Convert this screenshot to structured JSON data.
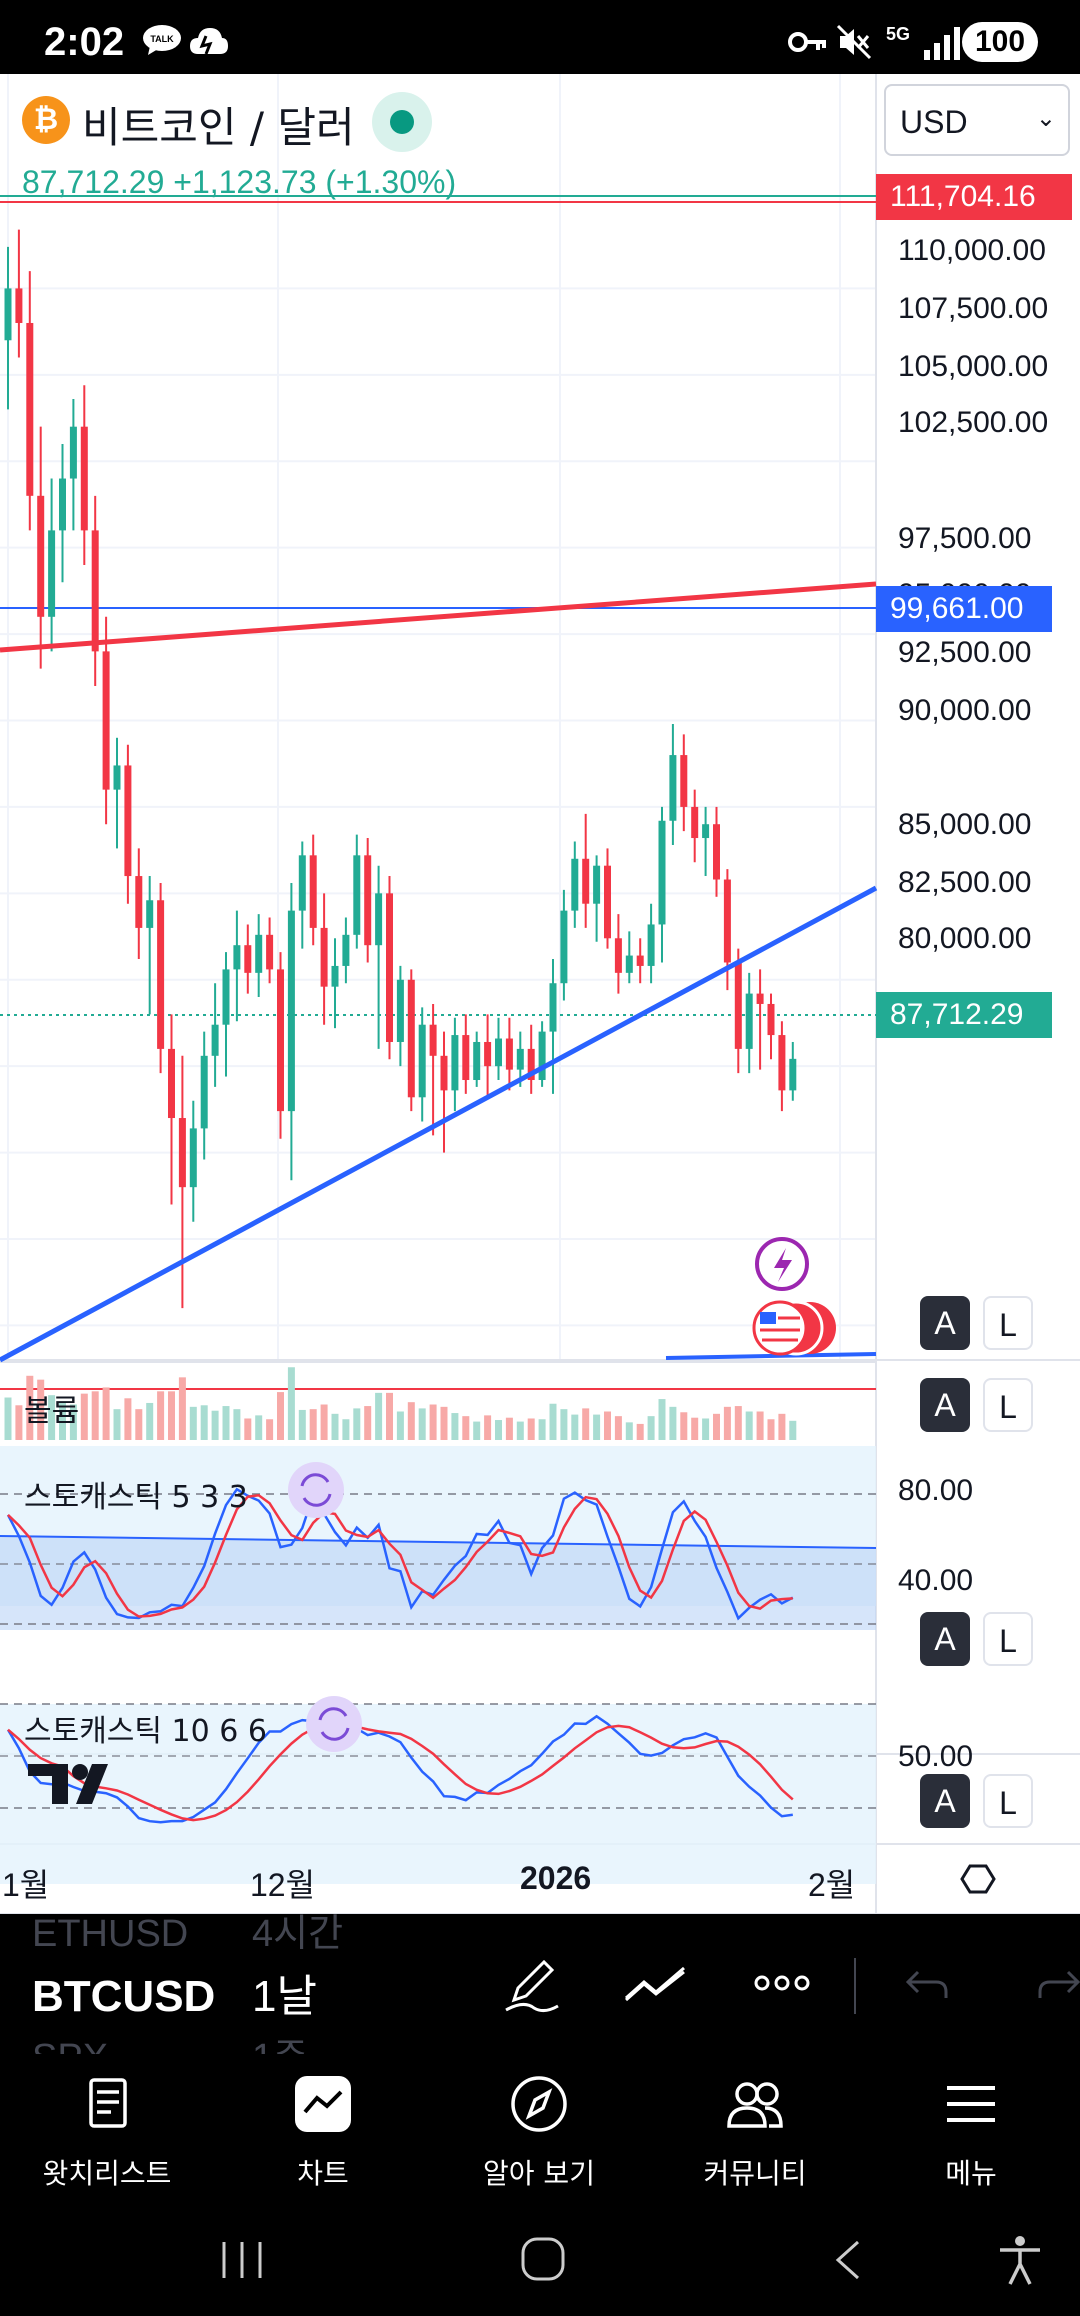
{
  "status_bar": {
    "time": "2:02",
    "battery": "100",
    "network": "5G"
  },
  "symbol": {
    "name": "비트코인 / 달러",
    "logo": "₿",
    "currency": "USD"
  },
  "price_info": {
    "last": "87,712.29",
    "change": "+1,123.73",
    "change_pct": "(+1.30%)"
  },
  "price_axis": [
    "110,000.00",
    "107,500.00",
    "105,000.00",
    "102,500.00",
    "97,500.00",
    "95,000.00",
    "92,500.00",
    "90,000.00",
    "85,000.00",
    "82,500.00",
    "80,000.00"
  ],
  "price_tags": {
    "high": "111,704.16",
    "level": "99,661.00",
    "current": "87,712.29"
  },
  "panes": {
    "volume": "볼륨",
    "stoch1": "스토캐스틱 5 3 3",
    "stoch2": "스토캐스틱 10 6 6",
    "stoch1_axis": [
      "80.00",
      "40.00"
    ],
    "stoch2_axis": [
      "50.00"
    ]
  },
  "scale_buttons": {
    "auto": "A",
    "log": "L"
  },
  "time_axis": [
    "1월",
    "12월",
    "2026",
    "2월"
  ],
  "toolbar": {
    "symbols": [
      {
        "symbol": "ETHUSD",
        "interval": "4시간"
      },
      {
        "symbol": "BTCUSD",
        "interval": "1날"
      },
      {
        "symbol": "SPX",
        "interval": "1주"
      }
    ]
  },
  "nav": [
    "왓치리스트",
    "차트",
    "알아 보기",
    "커뮤니티",
    "메뉴"
  ],
  "colors": {
    "up": "#22ab94",
    "down": "#f23645",
    "trend_blue": "#2962ff",
    "trend_red": "#f23645"
  },
  "chart_data": {
    "type": "candlestick",
    "symbol": "BTCUSD",
    "interval": "1날",
    "ylim": [
      79000,
      112500
    ],
    "last_price": 87712.29,
    "horizontal_levels": [
      111704.16,
      99661.0,
      87712.29
    ],
    "candles": [
      [
        108500,
        111200,
        106500,
        110000
      ],
      [
        110000,
        111700,
        108000,
        109000
      ],
      [
        109000,
        110500,
        103000,
        104000
      ],
      [
        104000,
        106000,
        99000,
        100500
      ],
      [
        100500,
        104500,
        99500,
        103000
      ],
      [
        103000,
        105500,
        101500,
        104500
      ],
      [
        104500,
        106800,
        103000,
        106000
      ],
      [
        106000,
        107200,
        102000,
        103000
      ],
      [
        103000,
        104000,
        98500,
        99500
      ],
      [
        99500,
        100500,
        94500,
        95500
      ],
      [
        95500,
        97000,
        93800,
        96200
      ],
      [
        96200,
        96800,
        92200,
        93000
      ],
      [
        93000,
        93800,
        90600,
        91500
      ],
      [
        91500,
        93000,
        89000,
        92300
      ],
      [
        92300,
        92800,
        87300,
        88000
      ],
      [
        88000,
        89000,
        83500,
        86000
      ],
      [
        86000,
        87800,
        80500,
        84000
      ],
      [
        84000,
        86500,
        83000,
        85700
      ],
      [
        85700,
        88500,
        84800,
        87800
      ],
      [
        87800,
        89900,
        86900,
        88700
      ],
      [
        88700,
        90800,
        87200,
        90300
      ],
      [
        90300,
        92000,
        88800,
        91000
      ],
      [
        91000,
        91600,
        89600,
        90200
      ],
      [
        90200,
        91900,
        89500,
        91300
      ],
      [
        91300,
        91800,
        89900,
        90300
      ],
      [
        90300,
        90800,
        85400,
        86200
      ],
      [
        86200,
        92800,
        84200,
        92000
      ],
      [
        92000,
        94000,
        90900,
        93600
      ],
      [
        93600,
        94200,
        91000,
        91500
      ],
      [
        91500,
        92500,
        88700,
        89800
      ],
      [
        89800,
        91200,
        88600,
        90400
      ],
      [
        90400,
        91800,
        89900,
        91300
      ],
      [
        91300,
        94200,
        90900,
        93600
      ],
      [
        93600,
        94100,
        90500,
        91000
      ],
      [
        91000,
        93300,
        88000,
        92500
      ],
      [
        92500,
        93000,
        87700,
        88200
      ],
      [
        88200,
        90400,
        87500,
        90000
      ],
      [
        90000,
        90300,
        86200,
        86600
      ],
      [
        86600,
        89200,
        85900,
        88700
      ],
      [
        88700,
        89300,
        85500,
        87800
      ],
      [
        87800,
        88500,
        85000,
        86800
      ],
      [
        86800,
        88900,
        86200,
        88400
      ],
      [
        88400,
        89000,
        86700,
        87100
      ],
      [
        87100,
        88500,
        86900,
        88200
      ],
      [
        88200,
        89000,
        86600,
        87500
      ],
      [
        87500,
        88900,
        87100,
        88300
      ],
      [
        88300,
        88900,
        86800,
        87400
      ],
      [
        87400,
        88500,
        86900,
        88000
      ],
      [
        88000,
        88700,
        86700,
        87100
      ],
      [
        87100,
        88800,
        86900,
        88500
      ],
      [
        88500,
        90600,
        86700,
        89900
      ],
      [
        89900,
        92600,
        89400,
        92000
      ],
      [
        92000,
        94000,
        91500,
        93500
      ],
      [
        93500,
        94800,
        91500,
        92200
      ],
      [
        92200,
        93600,
        91100,
        93300
      ],
      [
        93300,
        93800,
        90900,
        91200
      ],
      [
        91200,
        91900,
        89600,
        90200
      ],
      [
        90200,
        91400,
        89900,
        90700
      ],
      [
        90700,
        91200,
        89900,
        90400
      ],
      [
        90400,
        92200,
        89900,
        91600
      ],
      [
        91600,
        95000,
        90500,
        94600
      ],
      [
        94600,
        97400,
        93900,
        96500
      ],
      [
        96500,
        97100,
        94300,
        95000
      ],
      [
        95000,
        95500,
        93400,
        94100
      ],
      [
        94100,
        95000,
        93000,
        94500
      ],
      [
        94500,
        95000,
        92400,
        92900
      ],
      [
        92900,
        93200,
        89700,
        90500
      ],
      [
        90500,
        90900,
        87300,
        88000
      ],
      [
        88000,
        90200,
        87300,
        89600
      ],
      [
        89600,
        90300,
        87400,
        89300
      ],
      [
        89300,
        89600,
        87700,
        88400
      ],
      [
        88400,
        88800,
        86200,
        86800
      ],
      [
        86800,
        88200,
        86500,
        87712
      ]
    ]
  }
}
